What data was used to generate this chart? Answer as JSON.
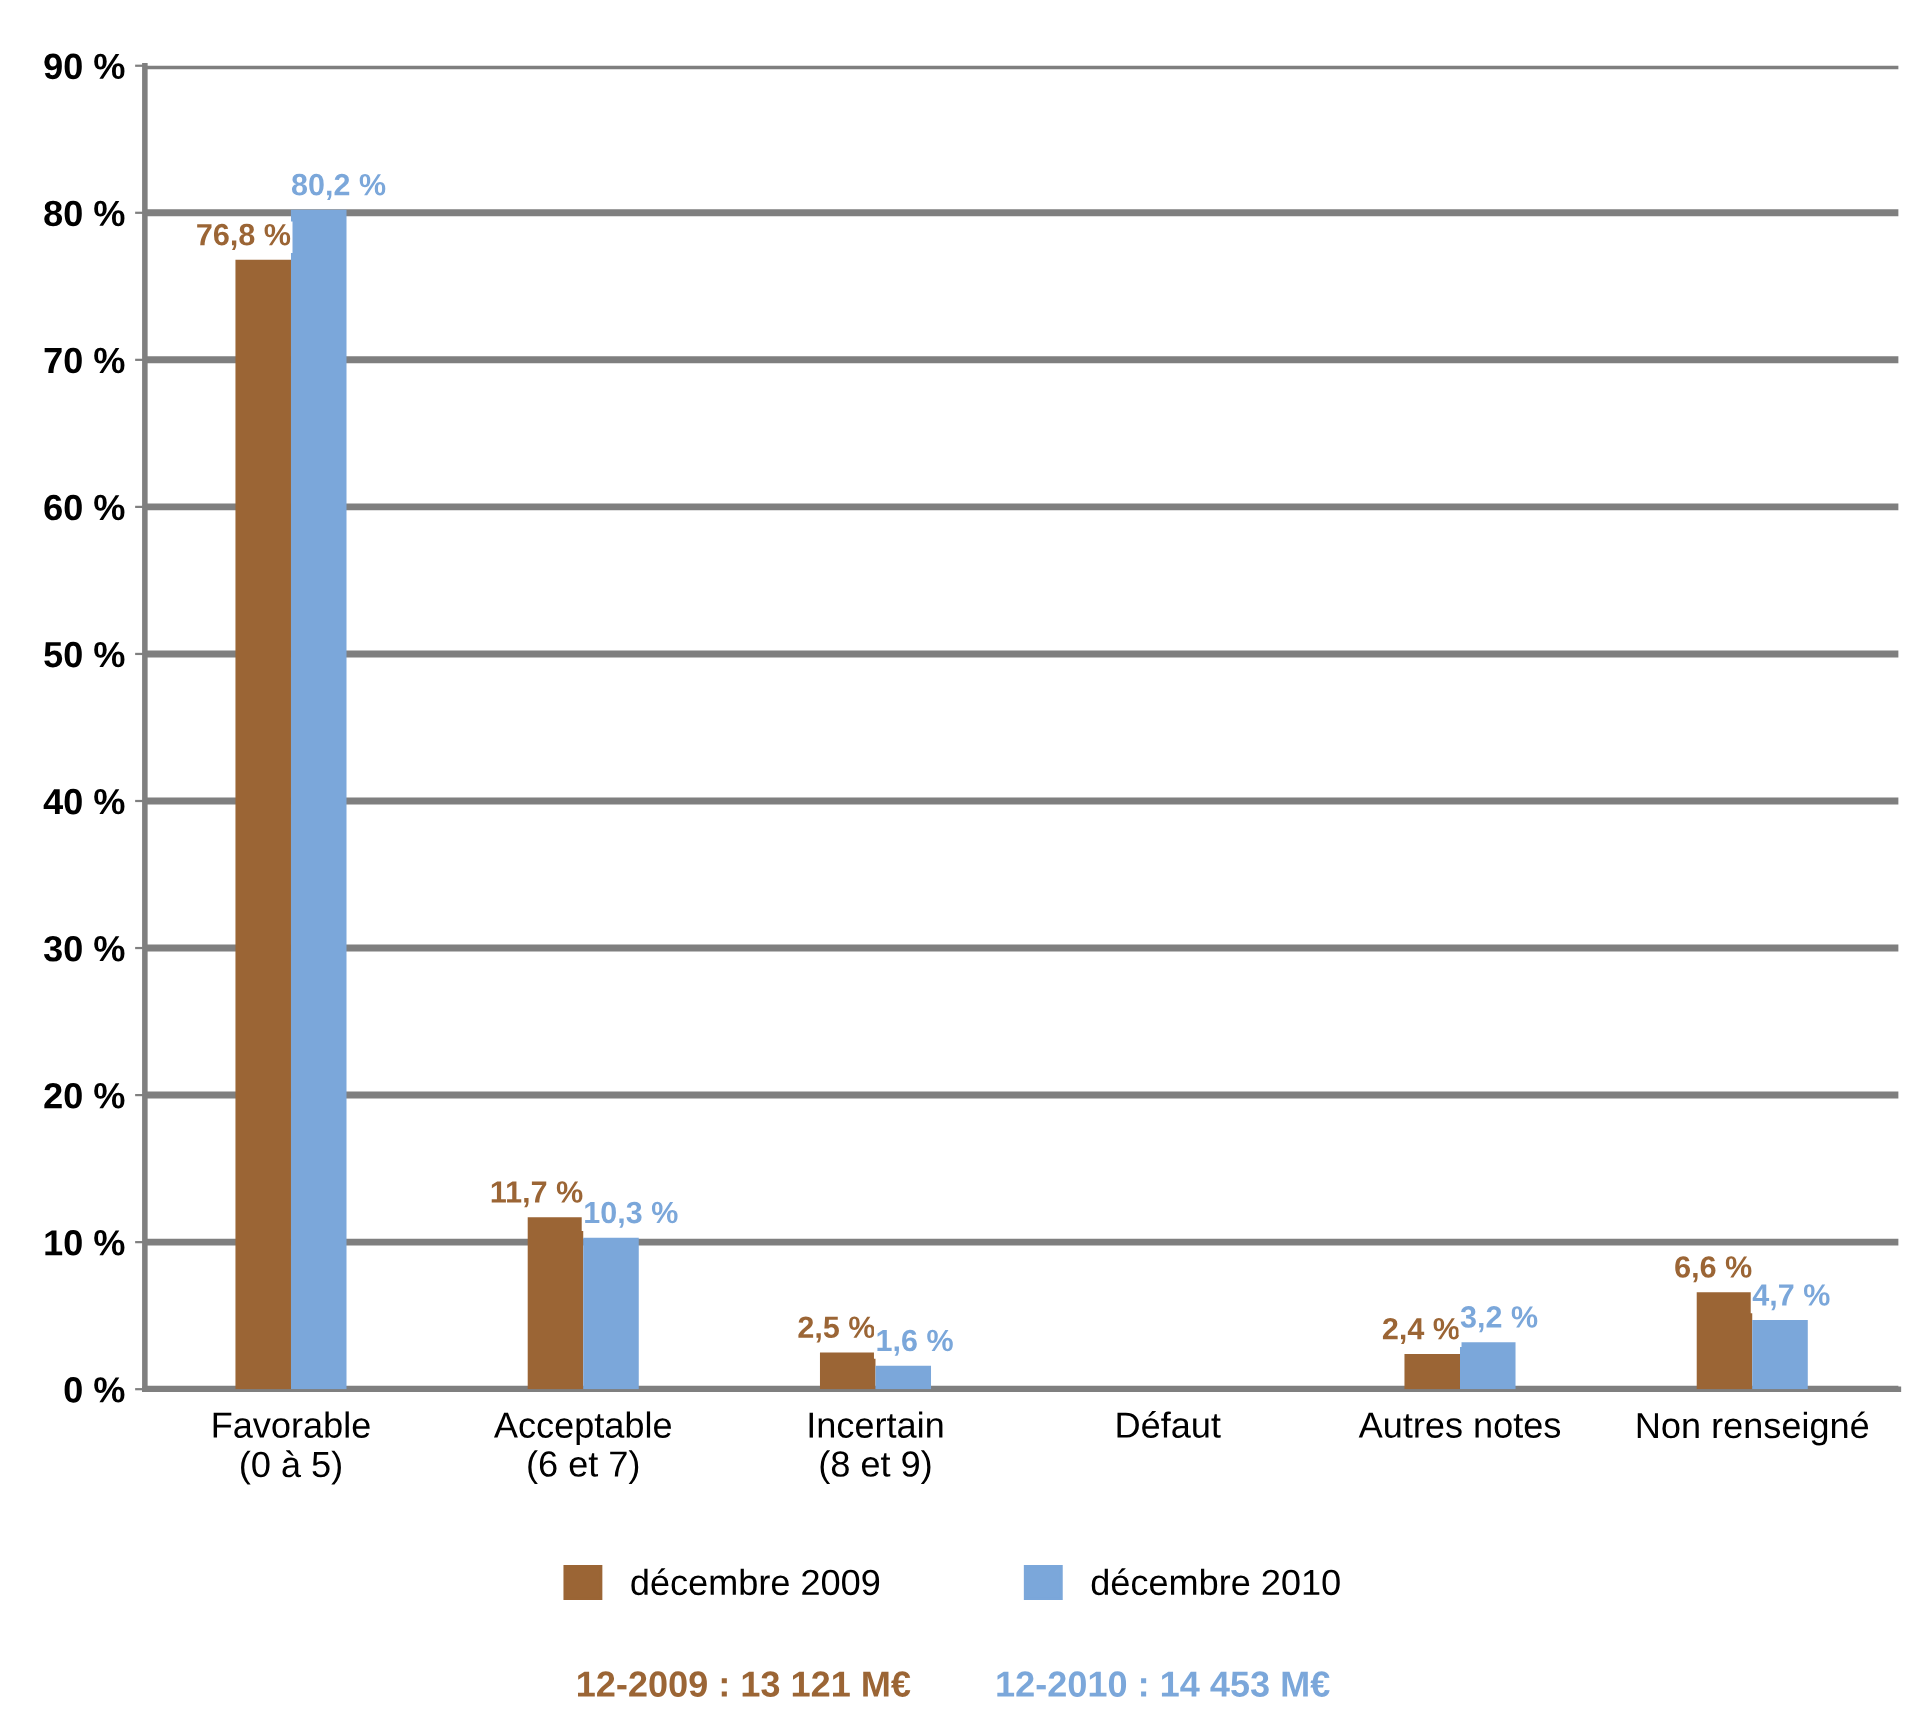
{
  "chart_data": {
    "type": "bar",
    "categories": [
      "Favorable\n(0 à 5)",
      "Acceptable\n(6 et 7)",
      "Incertain\n(8 et 9)",
      "Défaut",
      "Autres notes",
      "Non renseigné"
    ],
    "series": [
      {
        "name": "décembre 2009",
        "color": "#9b6535",
        "values": [
          76.8,
          11.7,
          2.5,
          null,
          2.4,
          6.6
        ],
        "value_labels": [
          "76,8 %",
          "11,7 %",
          "2,5 %",
          null,
          "2,4 %",
          "6,6 %"
        ]
      },
      {
        "name": "décembre 2010",
        "color": "#7ba7da",
        "values": [
          80.2,
          10.3,
          1.6,
          null,
          3.2,
          4.7
        ],
        "value_labels": [
          "80,2 %",
          "10,3 %",
          "1,6 %",
          null,
          "3,2 %",
          "4,7 %"
        ]
      }
    ],
    "ylim": [
      0,
      90
    ],
    "yticks": [
      {
        "value": 0,
        "label": "0 %"
      },
      {
        "value": 10,
        "label": "10 %"
      },
      {
        "value": 20,
        "label": "20 %"
      },
      {
        "value": 30,
        "label": "30 %"
      },
      {
        "value": 40,
        "label": "40 %"
      },
      {
        "value": 50,
        "label": "50 %"
      },
      {
        "value": 60,
        "label": "60 %"
      },
      {
        "value": 70,
        "label": "70 %"
      },
      {
        "value": 80,
        "label": "80 %"
      },
      {
        "value": 90,
        "label": "90 %"
      }
    ],
    "grid": "y",
    "legend": "bottom",
    "annotations": [
      "12-2009 : 13 121 M€",
      "12-2010 : 14 453 M€"
    ]
  }
}
